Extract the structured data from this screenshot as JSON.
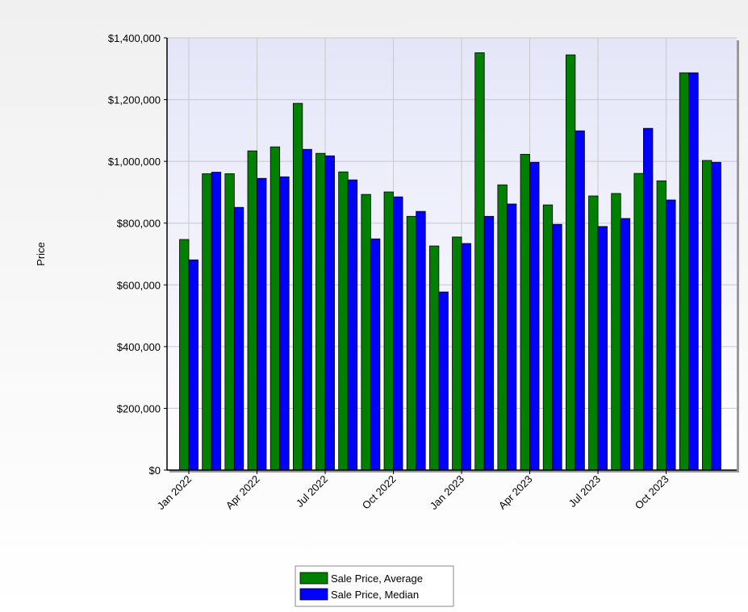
{
  "chart_data": {
    "type": "bar",
    "y_label": "Price",
    "categories": [
      "Jan 2022",
      null,
      null,
      "Apr 2022",
      null,
      null,
      "Jul 2022",
      null,
      null,
      "Oct 2022",
      null,
      null,
      "Jan 2023",
      null,
      null,
      "Apr 2023",
      null,
      null,
      "Jul 2023",
      null,
      null,
      "Oct 2023",
      null,
      null
    ],
    "series": [
      {
        "name": "Sale Price, Average",
        "color": "#008000",
        "values": [
          747000,
          960000,
          960000,
          1034000,
          1047000,
          1188000,
          1026000,
          966000,
          893000,
          901000,
          822000,
          726000,
          755000,
          1352000,
          924000,
          1023000,
          859000,
          1345000,
          888000,
          896000,
          961000,
          937000,
          1287000,
          1003000
        ]
      },
      {
        "name": "Sale Price, Median",
        "color": "#0000ff",
        "values": [
          681000,
          965000,
          851000,
          945000,
          950000,
          1039000,
          1018000,
          940000,
          749000,
          885000,
          838000,
          577000,
          734000,
          822000,
          862000,
          997000,
          796000,
          1099000,
          789000,
          815000,
          1107000,
          875000,
          1287000,
          997000
        ]
      }
    ],
    "ylim": [
      0,
      1400000
    ],
    "yticks": [
      {
        "value": 0,
        "label": "$0"
      },
      {
        "value": 200000,
        "label": "$200,000"
      },
      {
        "value": 400000,
        "label": "$400,000"
      },
      {
        "value": 600000,
        "label": "$600,000"
      },
      {
        "value": 800000,
        "label": "$800,000"
      },
      {
        "value": 1000000,
        "label": "$1,000,000"
      },
      {
        "value": 1200000,
        "label": "$1,200,000"
      },
      {
        "value": 1400000,
        "label": "$1,400,000"
      }
    ],
    "grid": true,
    "legend": "bottom"
  }
}
